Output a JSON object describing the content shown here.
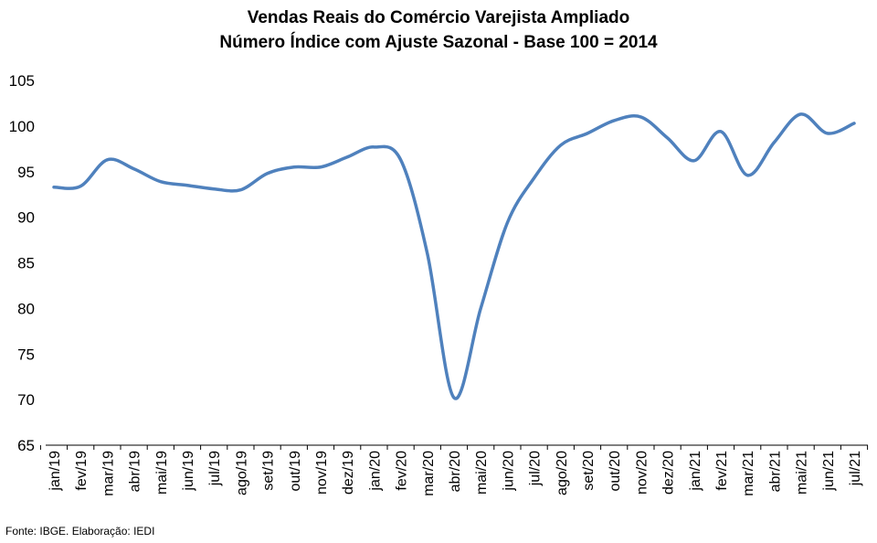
{
  "chart_data": {
    "type": "line",
    "title": "Vendas Reais do Comércio Varejista Ampliado",
    "subtitle": "Número Índice com Ajuste Sazonal - Base 100 = 2014",
    "xlabel": "",
    "ylabel": "",
    "ylim": [
      65,
      105
    ],
    "yticks": [
      65,
      70,
      75,
      80,
      85,
      90,
      95,
      100,
      105
    ],
    "grid": false,
    "legend": "none",
    "line_color": "#4F81BD",
    "categories": [
      "jan/19",
      "fev/19",
      "mar/19",
      "abr/19",
      "mai/19",
      "jun/19",
      "jul/19",
      "ago/19",
      "set/19",
      "out/19",
      "nov/19",
      "dez/19",
      "jan/20",
      "fev/20",
      "mar/20",
      "abr/20",
      "mai/20",
      "jun/20",
      "jul/20",
      "ago/20",
      "set/20",
      "out/20",
      "nov/20",
      "dez/20",
      "jan/21",
      "fev/21",
      "mar/21",
      "abr/21",
      "mai/21",
      "jun/21",
      "jul/21"
    ],
    "series": [
      {
        "name": "",
        "values": [
          93.3,
          93.4,
          96.3,
          95.3,
          93.9,
          93.5,
          93.1,
          93.0,
          94.8,
          95.5,
          95.5,
          96.6,
          97.7,
          96.3,
          86.0,
          70.2,
          80.0,
          89.4,
          94.3,
          97.9,
          99.2,
          100.6,
          101.0,
          98.7,
          96.2,
          99.4,
          94.6,
          98.2,
          101.3,
          99.2,
          100.3
        ]
      }
    ]
  },
  "source": "Fonte: IBGE. Elaboração: IEDI"
}
